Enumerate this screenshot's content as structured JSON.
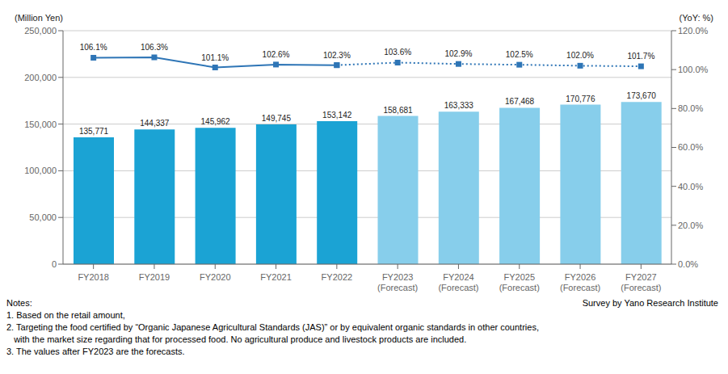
{
  "chart_data": {
    "type": "bar",
    "categories": [
      "FY2018",
      "FY2019",
      "FY2020",
      "FY2021",
      "FY2022",
      "FY2023\n(Forecast)",
      "FY2024\n(Forecast)",
      "FY2025\n(Forecast)",
      "FY2026\n(Forecast)",
      "FY2027\n(Forecast)"
    ],
    "series": [
      {
        "type": "bar",
        "colors": [
          "#1ba3d4",
          "#1ba3d4",
          "#1ba3d4",
          "#1ba3d4",
          "#1ba3d4",
          "#87ceeb",
          "#87ceeb",
          "#87ceeb",
          "#87ceeb",
          "#87ceeb"
        ],
        "values": [
          135771,
          144337,
          145962,
          149745,
          153142,
          158681,
          163333,
          167468,
          170776,
          173670
        ],
        "data_labels": true,
        "value_labels": [
          "135,771",
          "144,337",
          "145,962",
          "149,745",
          "153,142",
          "158,681",
          "163,333",
          "167,468",
          "170,776",
          "173,670"
        ]
      },
      {
        "type": "line",
        "axis": "y2",
        "color": "#2e75b6",
        "marker": "square",
        "line_style": "solid",
        "values": [
          106.1,
          106.3,
          101.1,
          102.6,
          102.3,
          null,
          null,
          null,
          null,
          null
        ],
        "data_labels": true,
        "value_labels": [
          "106.1%",
          "106.3%",
          "101.1%",
          "102.6%",
          "102.3%",
          null,
          null,
          null,
          null,
          null
        ]
      },
      {
        "type": "line",
        "axis": "y2",
        "color": "#2e75b6",
        "marker": "square",
        "line_style": "dotted",
        "values": [
          null,
          null,
          null,
          null,
          102.3,
          103.6,
          102.9,
          102.5,
          102.0,
          101.7
        ],
        "data_labels": true,
        "value_labels": [
          null,
          null,
          null,
          null,
          null,
          "103.6%",
          "102.9%",
          "102.5%",
          "102.0%",
          "101.7%"
        ]
      }
    ],
    "ylabel": "(Million Yen)",
    "y2label": "(YoY: %)",
    "ylim": [
      0,
      250000
    ],
    "yticks": [
      0,
      {
        "value": 50000,
        "label": "50,000"
      },
      {
        "value": 100000,
        "label": "100,000"
      },
      {
        "value": 150000,
        "label": "150,000"
      },
      {
        "value": 200000,
        "label": "200,000"
      },
      {
        "value": 250000,
        "label": "250,000"
      }
    ],
    "y2lim": [
      0,
      120.0
    ],
    "y2ticks": [
      {
        "value": 0,
        "label": "0.0%"
      },
      {
        "value": 20,
        "label": "20.0%"
      },
      {
        "value": 40,
        "label": "40.0%"
      },
      {
        "value": 60,
        "label": "60.0%"
      },
      {
        "value": 80,
        "label": "80.0%"
      },
      {
        "value": 100,
        "label": "100.0%"
      },
      {
        "value": 120,
        "label": "120.0%"
      }
    ],
    "grid": true,
    "annotations": [
      "Notes:",
      "1. Based on the retail amount,",
      "2. Targeting the food certified by “Organic Japanese Agricultural Standards (JAS)” or by equivalent organic standards in other countries,",
      "   with the market size regarding that for processed food. No agricultural produce and livestock products are included.",
      "3. The values after FY2023 are the forecasts.",
      "Survey by Yano Research Institute"
    ]
  }
}
